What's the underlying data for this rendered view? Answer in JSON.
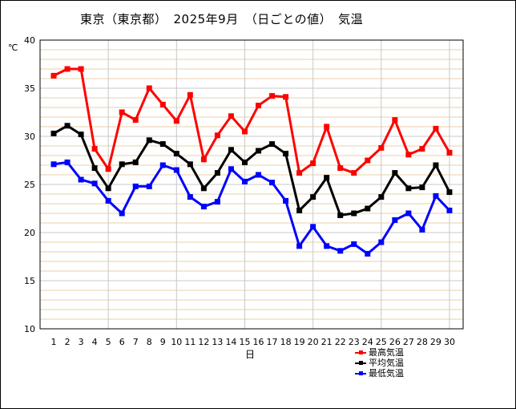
{
  "title": "東京（東京都）　2025年9月　（日ごとの値）　気温",
  "chart_data": {
    "type": "line",
    "title": "東京（東京都）　2025年9月　（日ごとの値）　気温",
    "xlabel": "日",
    "ylabel": "℃",
    "x": [
      1,
      2,
      3,
      4,
      5,
      6,
      7,
      8,
      9,
      10,
      11,
      12,
      13,
      14,
      15,
      16,
      17,
      18,
      19,
      20,
      21,
      22,
      23,
      24,
      25,
      26,
      27,
      28,
      29,
      30
    ],
    "ylim": [
      10,
      40
    ],
    "yticks": [
      10,
      15,
      20,
      25,
      30,
      35,
      40
    ],
    "grid": true,
    "legend_position": "bottom-right",
    "series": [
      {
        "name": "最高気温",
        "color": "#ff0000",
        "values": [
          36.3,
          37.0,
          37.0,
          28.7,
          26.6,
          32.5,
          31.7,
          35.0,
          33.3,
          31.6,
          34.3,
          27.6,
          30.1,
          32.1,
          30.5,
          33.2,
          34.2,
          34.1,
          26.2,
          27.2,
          31.0,
          26.7,
          26.2,
          27.5,
          28.8,
          31.7,
          28.1,
          28.7,
          30.8,
          28.3
        ]
      },
      {
        "name": "平均気温",
        "color": "#000000",
        "values": [
          30.3,
          31.1,
          30.2,
          26.7,
          24.6,
          27.1,
          27.3,
          29.6,
          29.2,
          28.2,
          27.1,
          24.6,
          26.2,
          28.6,
          27.3,
          28.5,
          29.2,
          28.2,
          22.3,
          23.7,
          25.7,
          21.8,
          22.0,
          22.5,
          23.7,
          26.2,
          24.6,
          24.7,
          27.0,
          24.2
        ]
      },
      {
        "name": "最低気温",
        "color": "#0000ff",
        "values": [
          27.1,
          27.3,
          25.5,
          25.1,
          23.3,
          22.0,
          24.8,
          24.8,
          27.0,
          26.5,
          23.7,
          22.7,
          23.2,
          26.6,
          25.3,
          26.0,
          25.2,
          23.3,
          18.6,
          20.6,
          18.6,
          18.1,
          18.8,
          17.8,
          19.0,
          21.3,
          22.0,
          20.3,
          23.8,
          22.3
        ]
      }
    ]
  }
}
